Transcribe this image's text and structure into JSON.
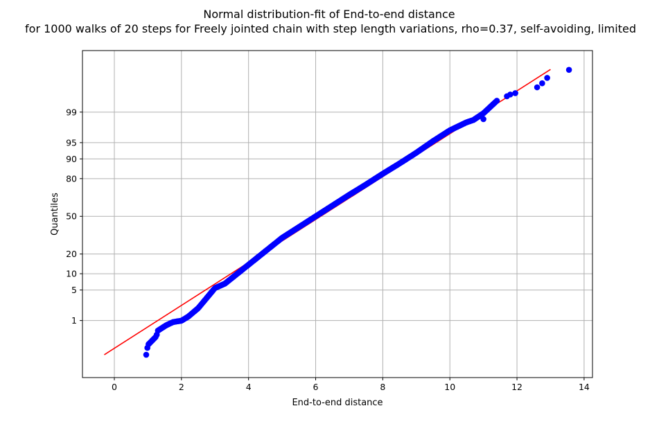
{
  "chart_data": {
    "type": "scatter",
    "title": "Normal distribution-fit of End-to-end distance",
    "subtitle": "for 1000 walks of 20 steps for Freely jointed chain with step length variations, rho=0.37, self-avoiding, limited",
    "xlabel": "End-to-end distance",
    "ylabel": "Quantiles",
    "xlim": [
      -0.95,
      14.25
    ],
    "ylim": [
      -3.6,
      3.7
    ],
    "y_scale": "normal-probability (z-score)",
    "xticks": [
      0,
      2,
      4,
      6,
      8,
      10,
      12,
      14
    ],
    "xtick_labels": [
      "0",
      "2",
      "4",
      "6",
      "8",
      "10",
      "12",
      "14"
    ],
    "yticks_percent": [
      1,
      5,
      10,
      20,
      50,
      80,
      90,
      95,
      99
    ],
    "ytick_labels": [
      "1",
      "5",
      "10",
      "20",
      "50",
      "80",
      "90",
      "95",
      "99"
    ],
    "grid": true,
    "legend": "none",
    "fit_line": {
      "color": "#ff0000",
      "x": [
        -0.3,
        13.0
      ],
      "z": [
        -3.09,
        3.28
      ]
    },
    "marker_color": "#0000ff",
    "samples": 1000,
    "quantile_anchors": [
      [
        0.95,
        -3.09
      ],
      [
        1.0,
        -2.87
      ],
      [
        1.25,
        -2.68
      ],
      [
        1.3,
        -2.55
      ],
      [
        1.55,
        -2.43
      ],
      [
        1.75,
        -2.36
      ],
      [
        2.0,
        -2.33
      ],
      [
        2.2,
        -2.24
      ],
      [
        2.5,
        -2.05
      ],
      [
        3.0,
        -1.6
      ],
      [
        3.3,
        -1.5
      ],
      [
        3.5,
        -1.38
      ],
      [
        4.0,
        -1.08
      ],
      [
        4.5,
        -0.78
      ],
      [
        5.0,
        -0.48
      ],
      [
        5.5,
        -0.24
      ],
      [
        6.0,
        0.0
      ],
      [
        6.5,
        0.24
      ],
      [
        7.0,
        0.48
      ],
      [
        7.5,
        0.71
      ],
      [
        8.0,
        0.95
      ],
      [
        8.5,
        1.18
      ],
      [
        9.0,
        1.42
      ],
      [
        9.5,
        1.68
      ],
      [
        10.0,
        1.92
      ],
      [
        10.5,
        2.1
      ],
      [
        10.7,
        2.15
      ],
      [
        11.0,
        2.3
      ],
      [
        11.4,
        2.58
      ]
    ],
    "tail_points": [
      [
        11.0,
        2.17
      ],
      [
        11.7,
        2.68
      ],
      [
        11.8,
        2.72
      ],
      [
        11.95,
        2.75
      ],
      [
        12.6,
        2.88
      ],
      [
        12.75,
        2.97
      ],
      [
        12.9,
        3.09
      ],
      [
        13.55,
        3.27
      ]
    ]
  }
}
